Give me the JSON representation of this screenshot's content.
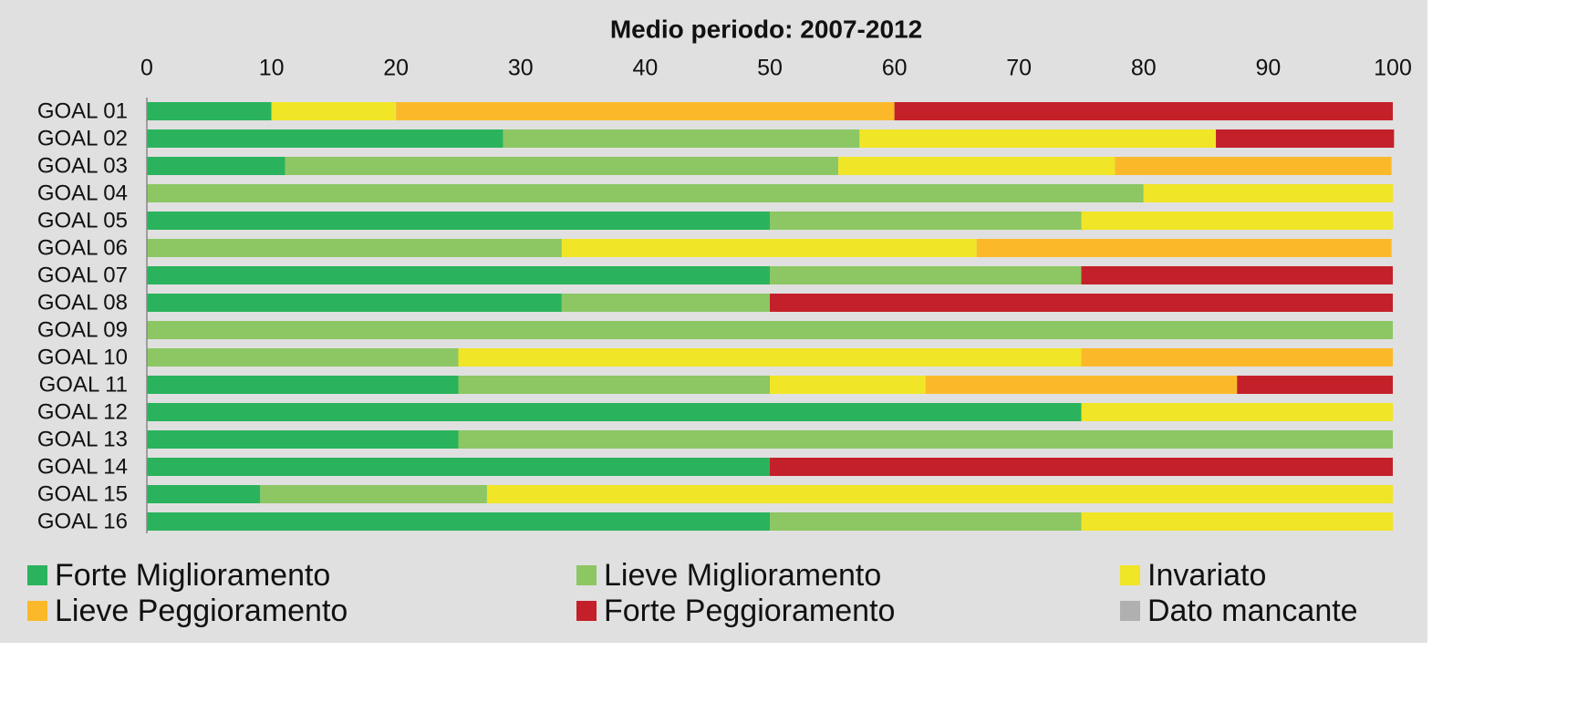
{
  "chart_data": {
    "type": "stacked-barh",
    "title": "Medio periodo: 2007-2012",
    "categories": [
      "GOAL 01",
      "GOAL 02",
      "GOAL 03",
      "GOAL 04",
      "GOAL 05",
      "GOAL 06",
      "GOAL 07",
      "GOAL 08",
      "GOAL 09",
      "GOAL 10",
      "GOAL 11",
      "GOAL 12",
      "GOAL 13",
      "GOAL 14",
      "GOAL 15",
      "GOAL 16"
    ],
    "series": [
      {
        "name": "Forte Miglioramento",
        "color": "#2ab35c",
        "values": [
          10,
          28.6,
          11.1,
          0,
          50,
          0,
          50,
          33.3,
          0,
          0,
          25,
          75,
          25,
          50,
          9.1,
          50
        ]
      },
      {
        "name": "Lieve Miglioramento",
        "color": "#8cc763",
        "values": [
          0,
          28.6,
          44.4,
          80,
          25,
          33.3,
          25,
          16.7,
          100,
          25,
          25,
          0,
          75,
          0,
          18.2,
          25
        ]
      },
      {
        "name": "Invariato",
        "color": "#f0e526",
        "values": [
          10,
          28.6,
          22.2,
          20,
          25,
          33.3,
          0,
          0,
          0,
          50,
          12.5,
          25,
          0,
          0,
          72.7,
          25
        ]
      },
      {
        "name": "Lieve Peggioramento",
        "color": "#fbb92a",
        "values": [
          40,
          0,
          22.2,
          0,
          0,
          33.3,
          0,
          0,
          0,
          25,
          25,
          0,
          0,
          0,
          0,
          0
        ]
      },
      {
        "name": "Forte Peggioramento",
        "color": "#c4202a",
        "values": [
          40,
          14.3,
          0,
          0,
          0,
          0,
          25,
          50,
          0,
          0,
          12.5,
          0,
          0,
          50,
          0,
          0
        ]
      },
      {
        "name": "Dato mancante",
        "color": "#b0b0b0",
        "values": [
          0,
          0,
          0,
          0,
          0,
          0,
          0,
          0,
          0,
          0,
          0,
          0,
          0,
          0,
          0,
          0
        ]
      }
    ],
    "xlim": [
      0,
      100
    ],
    "xticks": [
      0,
      10,
      20,
      30,
      40,
      50,
      60,
      70,
      80,
      90,
      100
    ]
  }
}
